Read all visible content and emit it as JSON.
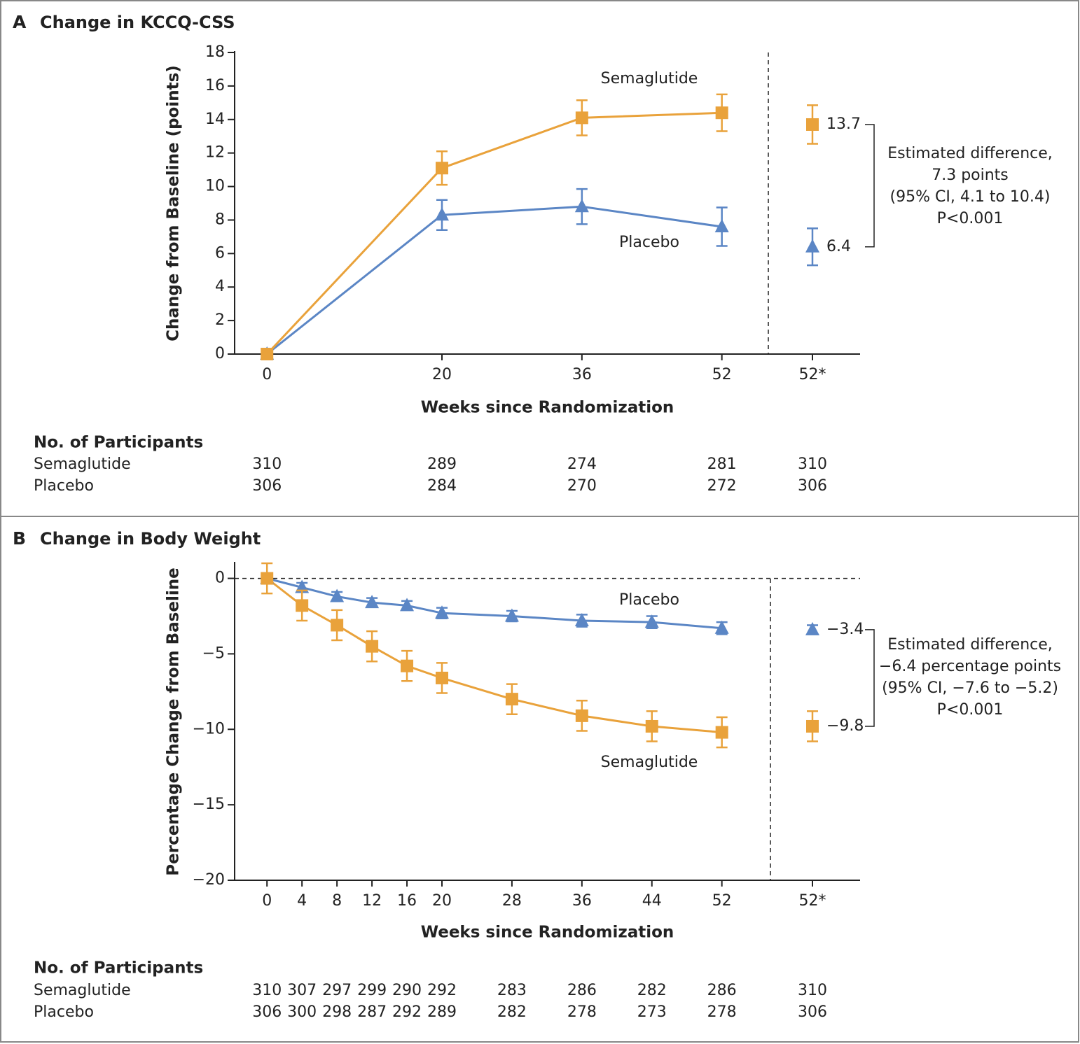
{
  "chart_data": [
    {
      "type": "line",
      "panel_label": "A",
      "title": "Change in KCCQ-CSS",
      "x_label": "Weeks since Randomization",
      "y_label": "Change from Baseline (points)",
      "x": [
        0,
        20,
        36,
        52
      ],
      "xlim": [
        -3.7,
        67.8
      ],
      "xticks": [
        0,
        20,
        36,
        52
      ],
      "summary_tick": "52*",
      "ylim": [
        0,
        18
      ],
      "yticks": [
        0,
        2,
        4,
        6,
        8,
        10,
        12,
        14,
        16,
        18
      ],
      "series": [
        {
          "name": "Semaglutide",
          "color": "#e9a23b",
          "marker": "square",
          "values": [
            0,
            11.1,
            14.1,
            14.4
          ],
          "errors": [
            0,
            1.0,
            1.05,
            1.1
          ],
          "summary": 13.7,
          "summary_error": 1.15
        },
        {
          "name": "Placebo",
          "color": "#5b86c5",
          "marker": "triangle",
          "values": [
            0,
            8.3,
            8.8,
            7.6
          ],
          "errors": [
            0,
            0.9,
            1.05,
            1.15
          ],
          "summary": 6.4,
          "summary_error": 1.1
        }
      ],
      "annotation": [
        "Estimated difference,",
        "7.3 points",
        "(95% CI, 4.1 to 10.4)",
        "P<0.001"
      ],
      "participants": {
        "title": "No. of Participants",
        "rows": [
          {
            "name": "Semaglutide",
            "values": [
              310,
              289,
              274,
              281,
              310
            ]
          },
          {
            "name": "Placebo",
            "values": [
              306,
              284,
              270,
              272,
              306
            ]
          }
        ]
      }
    },
    {
      "type": "line",
      "panel_label": "B",
      "title": "Change in Body Weight",
      "x_label": "Weeks since Randomization",
      "y_label": "Percentage Change from Baseline",
      "x": [
        0,
        4,
        8,
        12,
        16,
        20,
        28,
        36,
        44,
        52
      ],
      "xlim": [
        -3.7,
        67.8
      ],
      "xticks": [
        0,
        4,
        8,
        12,
        16,
        20,
        28,
        36,
        44,
        52
      ],
      "summary_tick": "52*",
      "ylim": [
        -20,
        1
      ],
      "yticks": [
        0,
        {
          "value": -5,
          "label": "−5"
        },
        {
          "value": -10,
          "label": "−10"
        },
        {
          "value": -15,
          "label": "−15"
        },
        {
          "value": -20,
          "label": "−20"
        }
      ],
      "zero_line": true,
      "series": [
        {
          "name": "Semaglutide",
          "color": "#e9a23b",
          "marker": "square",
          "values": [
            0,
            -1.8,
            -3.1,
            -4.5,
            -5.8,
            -6.6,
            -8.0,
            -9.1,
            -9.8,
            -10.2
          ],
          "errors": [
            1.0,
            1.0,
            1.0,
            1.0,
            1.0,
            1.0,
            1.0,
            1.0,
            1.0,
            1.0
          ],
          "summary": -9.8,
          "summary_error": 1.0,
          "summary_label": "−9.8"
        },
        {
          "name": "Placebo",
          "color": "#5b86c5",
          "marker": "triangle",
          "values": [
            0,
            -0.6,
            -1.2,
            -1.6,
            -1.8,
            -2.3,
            -2.5,
            -2.8,
            -2.9,
            -3.3
          ],
          "errors": [
            0,
            0.3,
            0.3,
            0.3,
            0.3,
            0.35,
            0.35,
            0.4,
            0.4,
            0.4
          ],
          "summary": -3.4,
          "summary_error": 0.3,
          "summary_label": "−3.4"
        }
      ],
      "annotation": [
        "Estimated difference,",
        "−6.4 percentage points",
        "(95% CI, −7.6 to −5.2)",
        "P<0.001"
      ],
      "participants": {
        "title": "No. of Participants",
        "rows": [
          {
            "name": "Semaglutide",
            "values": [
              310,
              307,
              297,
              299,
              290,
              292,
              283,
              286,
              282,
              286,
              310
            ]
          },
          {
            "name": "Placebo",
            "values": [
              306,
              300,
              298,
              287,
              292,
              289,
              282,
              278,
              273,
              278,
              306
            ]
          }
        ]
      }
    }
  ]
}
